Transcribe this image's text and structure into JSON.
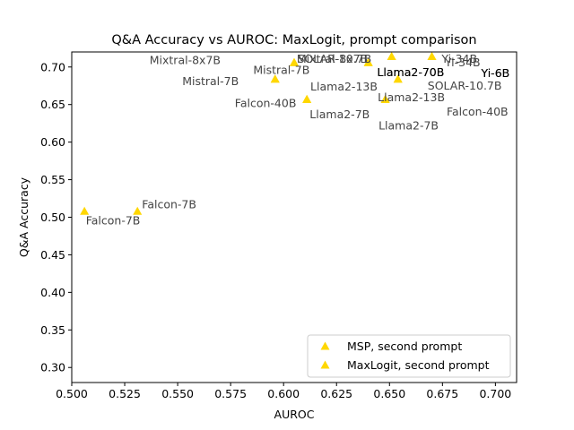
{
  "chart_data": {
    "type": "scatter",
    "title": "Q&A Accuracy vs AUROC: MaxLogit, prompt comparison",
    "xlabel": "AUROC",
    "ylabel": "Q&A Accuracy",
    "xlim": [
      0.5,
      0.71
    ],
    "ylim": [
      0.28,
      0.72
    ],
    "xticks": [
      0.5,
      0.525,
      0.55,
      0.575,
      0.6,
      0.625,
      0.65,
      0.675,
      0.7
    ],
    "xtick_labels": [
      "0.500",
      "0.525",
      "0.550",
      "0.575",
      "0.600",
      "0.625",
      "0.650",
      "0.675",
      "0.700"
    ],
    "yticks": [
      0.3,
      0.35,
      0.4,
      0.45,
      0.5,
      0.55,
      0.6,
      0.65,
      0.7
    ],
    "ytick_labels": [
      "0.30",
      "0.35",
      "0.40",
      "0.45",
      "0.50",
      "0.55",
      "0.60",
      "0.65",
      "0.70"
    ],
    "grid": false,
    "legend_position": "lower-right",
    "marker_color": "#FFD700",
    "series": [
      {
        "name": "MSP, second prompt",
        "marker": "triangle",
        "points": [
          {
            "x": 0.531,
            "y": 0.508
          },
          {
            "x": 0.596,
            "y": 0.684
          },
          {
            "x": 0.605,
            "y": 0.706
          },
          {
            "x": 0.611,
            "y": 0.657
          },
          {
            "x": 0.64,
            "y": 0.706
          },
          {
            "x": 0.648,
            "y": 0.657
          },
          {
            "x": 0.651,
            "y": 0.714
          },
          {
            "x": 0.654,
            "y": 0.684
          },
          {
            "x": 0.67,
            "y": 0.714
          }
        ]
      },
      {
        "name": "MaxLogit, second prompt",
        "marker": "triangle",
        "points": [
          {
            "x": 0.506,
            "y": 0.508
          },
          {
            "x": 0.596,
            "y": 0.684
          },
          {
            "x": 0.605,
            "y": 0.706
          },
          {
            "x": 0.611,
            "y": 0.657
          },
          {
            "x": 0.64,
            "y": 0.706
          },
          {
            "x": 0.648,
            "y": 0.657
          },
          {
            "x": 0.651,
            "y": 0.714
          },
          {
            "x": 0.654,
            "y": 0.684
          },
          {
            "x": 0.67,
            "y": 0.714
          }
        ]
      }
    ],
    "annotations": [
      {
        "text": "Mixtral-8x7B",
        "x": 0.5535,
        "y": 0.709,
        "anchor": "middle",
        "color": "#444444"
      },
      {
        "text": "Mistral-7B",
        "x": 0.5655,
        "y": 0.681,
        "anchor": "middle",
        "color": "#444444"
      },
      {
        "text": "Mistral-7B",
        "x": 0.599,
        "y": 0.696,
        "anchor": "middle",
        "color": "#444444"
      },
      {
        "text": "Falcon-40B",
        "x": 0.5915,
        "y": 0.652,
        "anchor": "middle",
        "color": "#444444"
      },
      {
        "text": "Mixtral-8x7B",
        "x": 0.623,
        "y": 0.711,
        "anchor": "middle",
        "color": "#444444"
      },
      {
        "text": "SOLAR-10.7B",
        "x": 0.624,
        "y": 0.711,
        "anchor": "middle",
        "color": "#444444"
      },
      {
        "text": "Llama2-13B",
        "x": 0.6285,
        "y": 0.674,
        "anchor": "middle",
        "color": "#444444"
      },
      {
        "text": "Llama2-7B",
        "x": 0.6265,
        "y": 0.637,
        "anchor": "middle",
        "color": "#444444"
      },
      {
        "text": "Llama2-70B",
        "x": 0.66,
        "y": 0.693,
        "anchor": "middle",
        "color": "#000000"
      },
      {
        "text": "Llama2-70B",
        "x": 0.66,
        "y": 0.693,
        "anchor": "middle",
        "color": "#000000"
      },
      {
        "text": "Llama2-13B",
        "x": 0.6603,
        "y": 0.66,
        "anchor": "middle",
        "color": "#444444"
      },
      {
        "text": "Llama2-7B",
        "x": 0.659,
        "y": 0.622,
        "anchor": "middle",
        "color": "#444444"
      },
      {
        "text": "Yi-34B",
        "x": 0.683,
        "y": 0.711,
        "anchor": "middle",
        "color": "#444444"
      },
      {
        "text": "Yi-34B",
        "x": 0.6845,
        "y": 0.706,
        "anchor": "middle",
        "color": "#444444"
      },
      {
        "text": "Yi-6B",
        "x": 0.7,
        "y": 0.692,
        "anchor": "middle",
        "color": "#000000"
      },
      {
        "text": "Yi-6B",
        "x": 0.7,
        "y": 0.692,
        "anchor": "middle",
        "color": "#000000"
      },
      {
        "text": "SOLAR-10.7B",
        "x": 0.6855,
        "y": 0.675,
        "anchor": "middle",
        "color": "#444444"
      },
      {
        "text": "Falcon-40B",
        "x": 0.6915,
        "y": 0.641,
        "anchor": "middle",
        "color": "#444444"
      },
      {
        "text": "Falcon-7B",
        "x": 0.546,
        "y": 0.517,
        "anchor": "middle",
        "color": "#444444"
      },
      {
        "text": "Falcon-7B",
        "x": 0.5195,
        "y": 0.496,
        "anchor": "middle",
        "color": "#444444"
      }
    ]
  }
}
